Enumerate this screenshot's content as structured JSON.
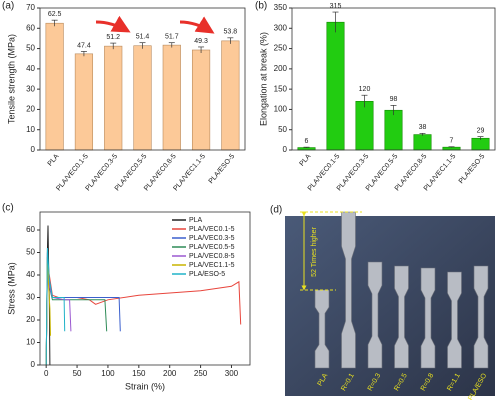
{
  "chart_data": [
    {
      "type": "bar",
      "panel_label": "(a)",
      "y_label": "Tensile strength (MPa)",
      "categories": [
        "PLA",
        "PLA/VEC0.1-5",
        "PLA/VEC0.3-5",
        "PLA/VEC0.5-5",
        "PLA/VEC0.8-5",
        "PLA/VEC1.1-5",
        "PLA/ESO-5"
      ],
      "values": [
        62.5,
        47.4,
        51.2,
        51.4,
        51.7,
        49.3,
        53.8
      ],
      "errors": [
        1.5,
        1.2,
        1.5,
        1.5,
        1.2,
        1.5,
        1.5
      ],
      "color": "#fcc998",
      "edge": "#b88a5c",
      "ylim": [
        0,
        70
      ],
      "yticks": [
        0,
        10,
        20,
        30,
        40,
        50,
        60,
        70
      ]
    },
    {
      "type": "bar",
      "panel_label": "(b)",
      "y_label": "Elongation at break (%)",
      "categories": [
        "PLA",
        "PLA/VEC0.1-5",
        "PLA/VEC0.3-5",
        "PLA/VEC0.5-5",
        "PLA/VEC0.8-5",
        "PLA/VEC1.1-5",
        "PLA/ESO-5"
      ],
      "values": [
        6,
        315,
        120,
        98,
        38,
        7,
        29
      ],
      "errors": [
        1,
        25,
        15,
        12,
        3,
        1,
        4
      ],
      "color": "#22cc11",
      "edge": "#118800",
      "ylim": [
        0,
        350
      ],
      "yticks": [
        0,
        50,
        100,
        150,
        200,
        250,
        300,
        350
      ]
    },
    {
      "type": "line",
      "panel_label": "(c)",
      "x_label": "Strain (%)",
      "y_label": "Stress (MPa)",
      "xlim": [
        -10,
        330
      ],
      "xticks": [
        0,
        50,
        100,
        150,
        200,
        250,
        300
      ],
      "ylim": [
        0,
        68
      ],
      "yticks": [
        0,
        10,
        20,
        30,
        40,
        50,
        60
      ],
      "series": [
        {
          "name": "PLA",
          "color": "#222222",
          "x": [
            0,
            2,
            3,
            4,
            5,
            6
          ],
          "values": [
            0,
            50,
            62,
            45,
            30,
            0
          ]
        },
        {
          "name": "PLA/VEC0.1-5",
          "color": "#e8453c",
          "x": [
            0,
            2,
            5,
            10,
            20,
            50,
            70,
            80,
            100,
            150,
            200,
            250,
            300,
            312,
            315
          ],
          "values": [
            0,
            45,
            40,
            31,
            30,
            30,
            29,
            27,
            29,
            31,
            32,
            33,
            35,
            37,
            18
          ]
        },
        {
          "name": "PLA/VEC0.3-5",
          "color": "#3a5fcd",
          "x": [
            0,
            2,
            5,
            10,
            50,
            100,
            118,
            120
          ],
          "values": [
            0,
            45,
            38,
            30,
            30,
            30,
            30,
            15
          ]
        },
        {
          "name": "PLA/VEC0.5-5",
          "color": "#2e8b57",
          "x": [
            0,
            2,
            5,
            10,
            50,
            95,
            98
          ],
          "values": [
            0,
            48,
            35,
            29,
            29,
            29,
            15
          ]
        },
        {
          "name": "PLA/VEC0.8-5",
          "color": "#9b59d0",
          "x": [
            0,
            2,
            5,
            10,
            30,
            38,
            40
          ],
          "values": [
            0,
            50,
            35,
            30,
            29,
            29,
            15
          ]
        },
        {
          "name": "PLA/VEC1.1-5",
          "color": "#c8b400",
          "x": [
            0,
            2,
            4,
            6,
            7
          ],
          "values": [
            0,
            48,
            35,
            25,
            13
          ]
        },
        {
          "name": "PLA/ESO-5",
          "color": "#20b2c8",
          "x": [
            0,
            2,
            5,
            10,
            25,
            29,
            30
          ],
          "values": [
            0,
            52,
            38,
            30,
            30,
            30,
            15
          ]
        }
      ]
    }
  ],
  "panel_d": {
    "panel_label": "(d)",
    "annotation": "52 Times higher",
    "specimens": [
      "PLA",
      "R=0.1",
      "R=0.3",
      "R=0.5",
      "R=0.8",
      "R=1.1",
      "PLA/ESO"
    ]
  }
}
